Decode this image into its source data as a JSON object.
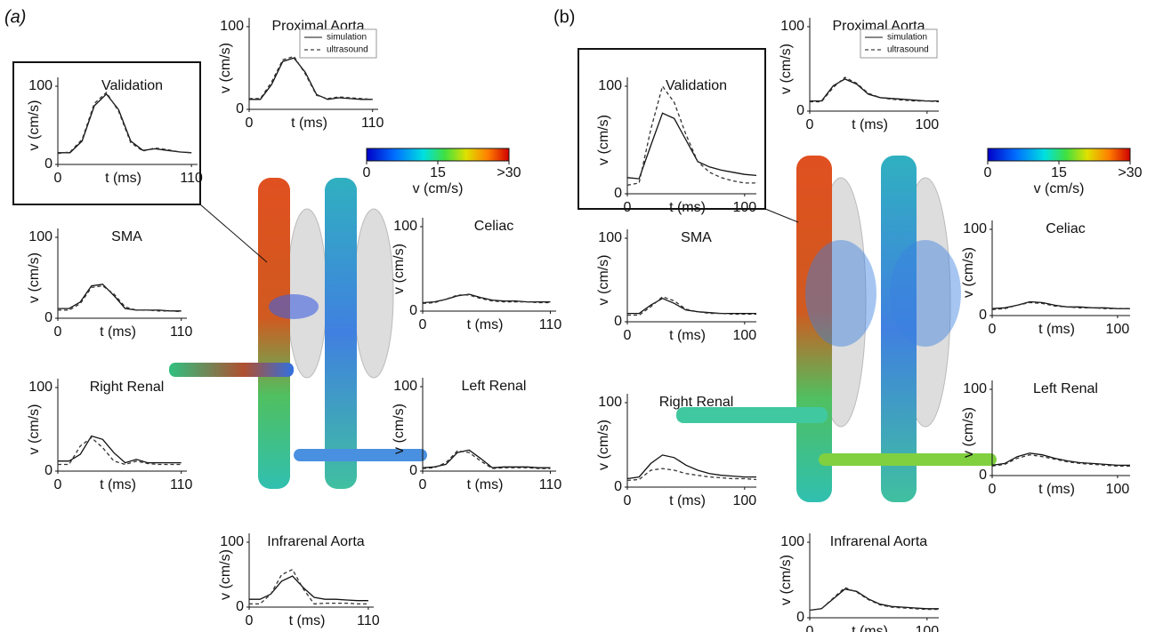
{
  "panels": [
    {
      "label": "(a)",
      "legend": [
        "simulation",
        "ultrasound"
      ],
      "colorbar": {
        "label": "v (cm/s)",
        "clim": [
          0,
          30
        ],
        "ticks": [
          0,
          15,
          {
            "value": 30,
            "label": ">30"
          }
        ]
      },
      "plots": [
        {
          "title": "Validation",
          "xlabel": "t (ms)",
          "ylabel": "v (cm/s)",
          "xlim": [
            0,
            115
          ],
          "ylim": [
            0,
            100
          ],
          "xticks": [
            0,
            110
          ],
          "yticks": [
            0,
            100
          ],
          "t": [
            0,
            10,
            20,
            30,
            40,
            50,
            60,
            70,
            80,
            90,
            100,
            110
          ],
          "curves": [
            [
              15,
              15,
              30,
              75,
              90,
              70,
              30,
              18,
              20,
              18,
              16,
              15
            ],
            [
              14,
              16,
              32,
              78,
              92,
              68,
              28,
              17,
              21,
              19,
              16,
              15
            ]
          ]
        },
        {
          "title": "Proximal Aorta",
          "xlabel": "t (ms)",
          "ylabel": "v (cm/s)",
          "xlim": [
            0,
            115
          ],
          "ylim": [
            0,
            100
          ],
          "xticks": [
            0,
            110
          ],
          "yticks": [
            0,
            100
          ],
          "legend": true,
          "t": [
            0,
            10,
            20,
            30,
            40,
            50,
            60,
            70,
            80,
            90,
            100,
            110
          ],
          "curves": [
            [
              12,
              12,
              30,
              58,
              62,
              45,
              18,
              12,
              14,
              13,
              12,
              12
            ],
            [
              13,
              13,
              33,
              60,
              64,
              43,
              17,
              13,
              15,
              14,
              13,
              12
            ]
          ]
        },
        {
          "title": "SMA",
          "xlabel": "t (ms)",
          "ylabel": "v (cm/s)",
          "xlim": [
            0,
            115
          ],
          "ylim": [
            0,
            100
          ],
          "xticks": [
            0,
            110
          ],
          "yticks": [
            0,
            100
          ],
          "t": [
            0,
            10,
            20,
            30,
            40,
            50,
            60,
            70,
            80,
            90,
            100,
            110
          ],
          "curves": [
            [
              12,
              12,
              20,
              40,
              42,
              28,
              12,
              10,
              10,
              10,
              9,
              9
            ],
            [
              10,
              10,
              18,
              38,
              40,
              30,
              14,
              10,
              10,
              9,
              9,
              8
            ]
          ]
        },
        {
          "title": "Right Renal",
          "xlabel": "t (ms)",
          "ylabel": "v (cm/s)",
          "xlim": [
            0,
            115
          ],
          "ylim": [
            0,
            100
          ],
          "xticks": [
            0,
            110
          ],
          "yticks": [
            0,
            100
          ],
          "t": [
            0,
            10,
            20,
            30,
            40,
            50,
            60,
            70,
            80,
            90,
            100,
            110
          ],
          "curves": [
            [
              12,
              12,
              20,
              42,
              38,
              22,
              10,
              14,
              10,
              10,
              10,
              10
            ],
            [
              8,
              8,
              30,
              40,
              28,
              12,
              8,
              12,
              9,
              8,
              8,
              8
            ]
          ]
        },
        {
          "title": "Celiac",
          "xlabel": "t (ms)",
          "ylabel": "v (cm/s)",
          "xlim": [
            0,
            115
          ],
          "ylim": [
            0,
            100
          ],
          "xticks": [
            0,
            110
          ],
          "yticks": [
            0,
            100
          ],
          "t": [
            0,
            10,
            20,
            30,
            40,
            50,
            60,
            70,
            80,
            90,
            100,
            110
          ],
          "curves": [
            [
              10,
              11,
              14,
              18,
              20,
              16,
              13,
              12,
              12,
              11,
              11,
              11
            ],
            [
              9,
              10,
              14,
              19,
              19,
              15,
              12,
              11,
              11,
              11,
              10,
              10
            ]
          ]
        },
        {
          "title": "Left Renal",
          "xlabel": "t (ms)",
          "ylabel": "v (cm/s)",
          "xlim": [
            0,
            115
          ],
          "ylim": [
            0,
            100
          ],
          "xticks": [
            0,
            110
          ],
          "yticks": [
            0,
            100
          ],
          "t": [
            0,
            10,
            20,
            30,
            40,
            50,
            60,
            70,
            80,
            90,
            100,
            110
          ],
          "curves": [
            [
              4,
              5,
              8,
              22,
              25,
              15,
              4,
              5,
              5,
              5,
              4,
              4
            ],
            [
              3,
              4,
              10,
              24,
              22,
              12,
              3,
              4,
              4,
              4,
              3,
              3
            ]
          ]
        },
        {
          "title": "Infrarenal Aorta",
          "xlabel": "t (ms)",
          "ylabel": "v (cm/s)",
          "xlim": [
            0,
            115
          ],
          "ylim": [
            0,
            100
          ],
          "xticks": [
            0,
            110
          ],
          "yticks": [
            0,
            100
          ],
          "t": [
            0,
            10,
            20,
            30,
            40,
            50,
            60,
            70,
            80,
            90,
            100,
            110
          ],
          "curves": [
            [
              12,
              12,
              20,
              40,
              48,
              30,
              15,
              12,
              12,
              11,
              10,
              10
            ],
            [
              5,
              5,
              20,
              50,
              58,
              28,
              5,
              6,
              6,
              6,
              5,
              5
            ]
          ]
        }
      ]
    },
    {
      "label": "(b)",
      "legend": [
        "simulation",
        "ultrasound"
      ],
      "colorbar": {
        "label": "v (cm/s)",
        "clim": [
          0,
          30
        ],
        "ticks": [
          0,
          15,
          {
            "value": 30,
            "label": ">30"
          }
        ]
      },
      "plots": [
        {
          "title": "Validation",
          "xlabel": "t (ms)",
          "ylabel": "v (cm/s)",
          "xlim": [
            0,
            110
          ],
          "ylim": [
            0,
            100
          ],
          "xticks": [
            0,
            100
          ],
          "yticks": [
            0,
            100
          ],
          "t": [
            0,
            10,
            20,
            30,
            40,
            50,
            60,
            70,
            80,
            90,
            100,
            110
          ],
          "curves": [
            [
              15,
              14,
              45,
              75,
              70,
              50,
              30,
              25,
              22,
              20,
              18,
              17
            ],
            [
              8,
              10,
              60,
              100,
              85,
              55,
              30,
              20,
              15,
              12,
              10,
              10
            ]
          ]
        },
        {
          "title": "Proximal Aorta",
          "xlabel": "t (ms)",
          "ylabel": "v (cm/s)",
          "xlim": [
            0,
            110
          ],
          "ylim": [
            0,
            100
          ],
          "xticks": [
            0,
            100
          ],
          "yticks": [
            0,
            100
          ],
          "legend": true,
          "t": [
            0,
            10,
            20,
            30,
            40,
            50,
            60,
            70,
            80,
            90,
            100,
            110
          ],
          "curves": [
            [
              12,
              12,
              30,
              38,
              32,
              20,
              16,
              15,
              14,
              13,
              12,
              12
            ],
            [
              11,
              11,
              28,
              40,
              33,
              21,
              16,
              14,
              13,
              12,
              12,
              11
            ]
          ]
        },
        {
          "title": "SMA",
          "xlabel": "t (ms)",
          "ylabel": "v (cm/s)",
          "xlim": [
            0,
            110
          ],
          "ylim": [
            0,
            100
          ],
          "xticks": [
            0,
            100
          ],
          "yticks": [
            0,
            100
          ],
          "t": [
            0,
            10,
            20,
            30,
            40,
            50,
            60,
            70,
            80,
            90,
            100,
            110
          ],
          "curves": [
            [
              10,
              10,
              20,
              28,
              22,
              14,
              12,
              11,
              10,
              10,
              10,
              10
            ],
            [
              8,
              8,
              18,
              30,
              25,
              15,
              12,
              10,
              10,
              9,
              9,
              9
            ]
          ]
        },
        {
          "title": "Right Renal",
          "xlabel": "t (ms)",
          "ylabel": "v (cm/s)",
          "xlim": [
            0,
            110
          ],
          "ylim": [
            0,
            100
          ],
          "xticks": [
            0,
            100
          ],
          "yticks": [
            0,
            100
          ],
          "t": [
            0,
            10,
            20,
            30,
            40,
            50,
            60,
            70,
            80,
            90,
            100,
            110
          ],
          "curves": [
            [
              10,
              12,
              28,
              38,
              35,
              26,
              20,
              16,
              14,
              13,
              12,
              12
            ],
            [
              8,
              9,
              20,
              22,
              20,
              16,
              14,
              12,
              11,
              10,
              10,
              9
            ]
          ]
        },
        {
          "title": "Celiac",
          "xlabel": "t (ms)",
          "ylabel": "v (cm/s)",
          "xlim": [
            0,
            110
          ],
          "ylim": [
            0,
            100
          ],
          "xticks": [
            0,
            100
          ],
          "yticks": [
            0,
            100
          ],
          "t": [
            0,
            10,
            20,
            30,
            40,
            50,
            60,
            70,
            80,
            90,
            100,
            110
          ],
          "curves": [
            [
              8,
              9,
              12,
              16,
              15,
              12,
              10,
              10,
              9,
              9,
              8,
              8
            ],
            [
              7,
              8,
              12,
              15,
              14,
              11,
              10,
              9,
              9,
              8,
              8,
              8
            ]
          ]
        },
        {
          "title": "Left Renal",
          "xlabel": "t (ms)",
          "ylabel": "v (cm/s)",
          "xlim": [
            0,
            110
          ],
          "ylim": [
            0,
            100
          ],
          "xticks": [
            0,
            100
          ],
          "yticks": [
            0,
            100
          ],
          "t": [
            0,
            10,
            20,
            30,
            40,
            50,
            60,
            70,
            80,
            90,
            100,
            110
          ],
          "curves": [
            [
              12,
              14,
              22,
              26,
              24,
              20,
              17,
              15,
              14,
              13,
              12,
              12
            ],
            [
              11,
              13,
              20,
              24,
              22,
              19,
              16,
              14,
              13,
              12,
              11,
              11
            ]
          ]
        },
        {
          "title": "Infrarenal Aorta",
          "xlabel": "t (ms)",
          "ylabel": "v (cm/s)",
          "xlim": [
            0,
            110
          ],
          "ylim": [
            0,
            100
          ],
          "xticks": [
            0,
            100
          ],
          "yticks": [
            0,
            100
          ],
          "t": [
            0,
            10,
            20,
            30,
            40,
            50,
            60,
            70,
            80,
            90,
            100,
            110
          ],
          "curves": [
            [
              10,
              12,
              25,
              38,
              35,
              25,
              18,
              15,
              14,
              13,
              12,
              12
            ],
            [
              10,
              12,
              26,
              40,
              34,
              24,
              17,
              14,
              13,
              12,
              11,
              11
            ]
          ]
        }
      ]
    }
  ]
}
